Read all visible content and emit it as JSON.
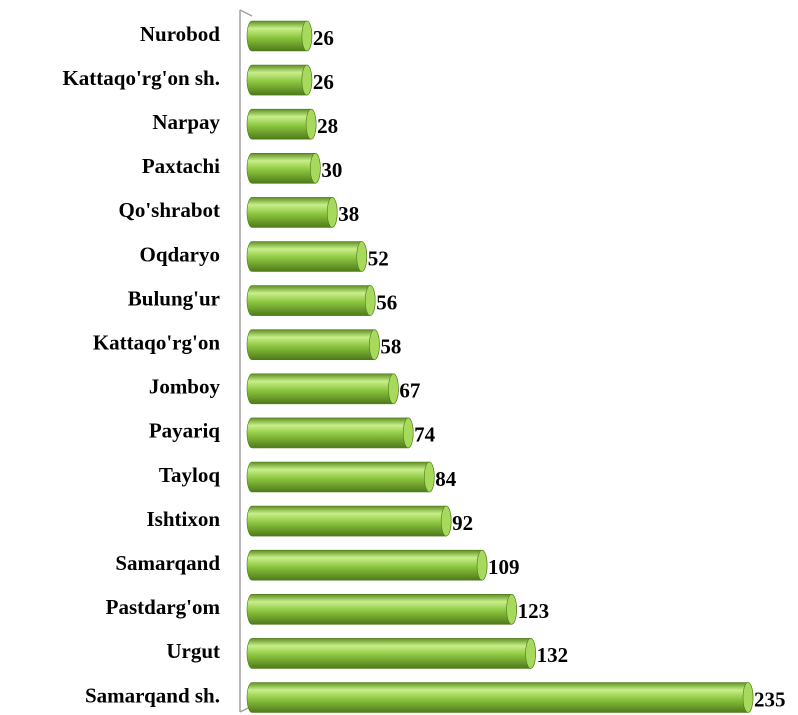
{
  "chart_data": {
    "type": "bar",
    "orientation": "horizontal",
    "categories": [
      "Nurobod",
      "Kattaqo'rg'on sh.",
      "Narpay",
      "Paxtachi",
      "Qo'shrabot",
      "Oqdaryo",
      "Bulung'ur",
      "Kattaqo'rg'on",
      "Jomboy",
      "Payariq",
      "Tayloq",
      "Ishtixon",
      "Samarqand",
      "Pastdarg'om",
      "Urgut",
      "Samarqand sh."
    ],
    "values": [
      26,
      26,
      28,
      30,
      38,
      52,
      56,
      58,
      67,
      74,
      84,
      92,
      109,
      123,
      132,
      235
    ],
    "color": "#8cc63f"
  }
}
